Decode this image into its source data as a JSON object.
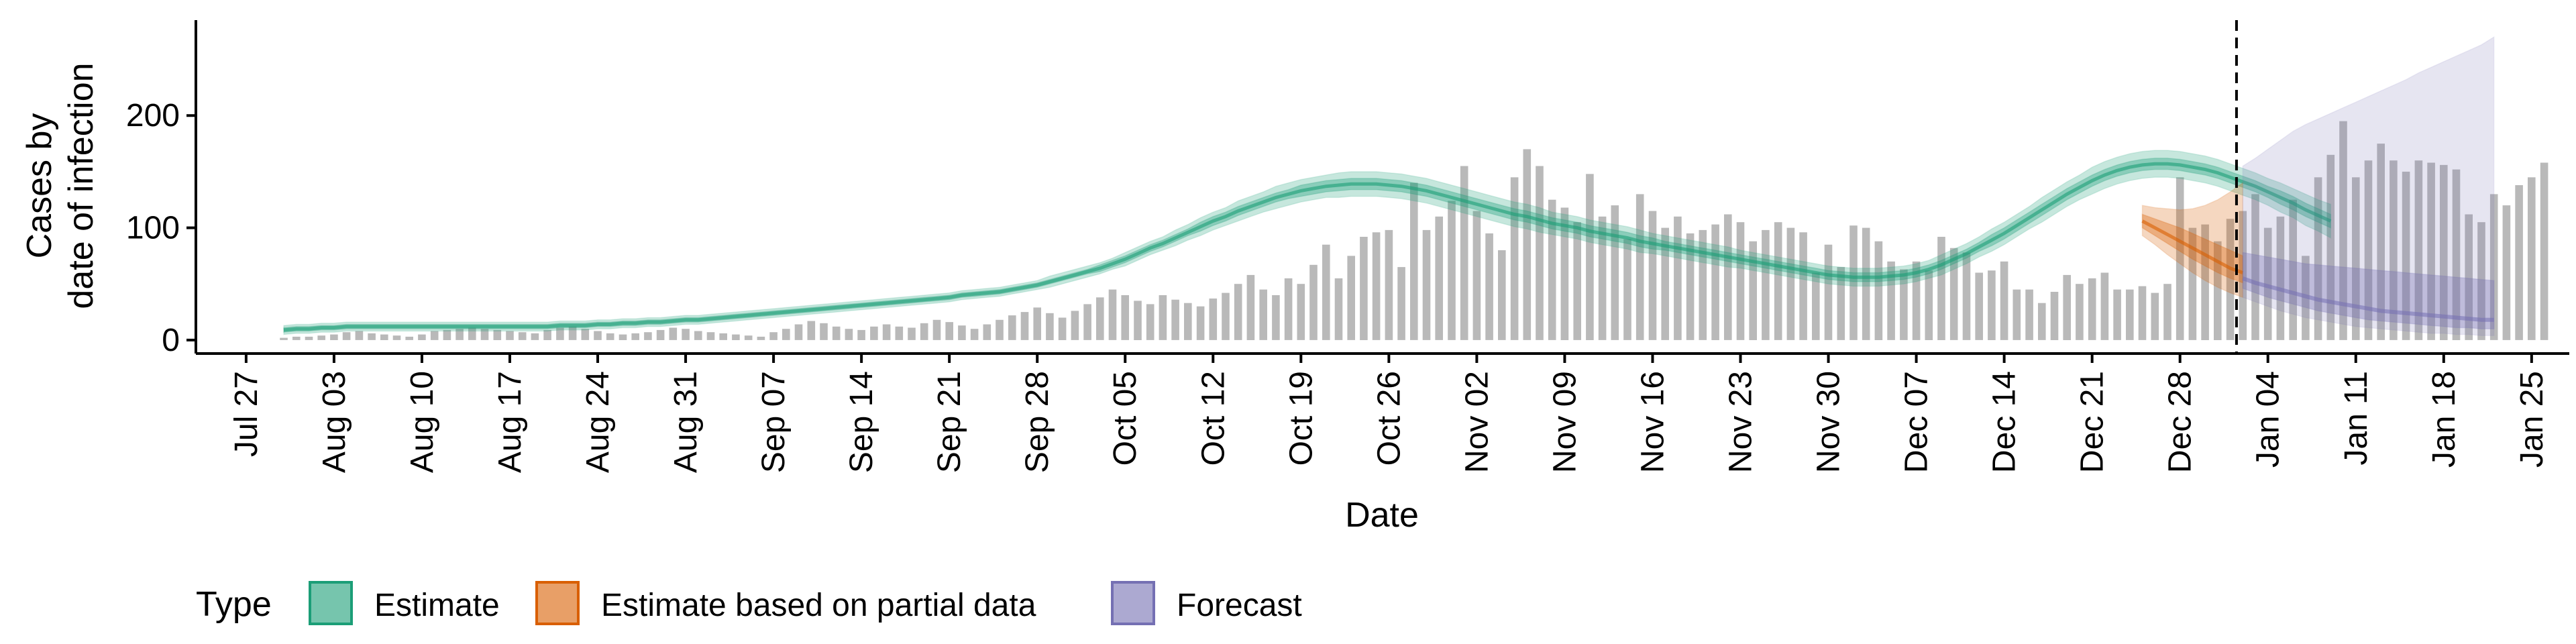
{
  "chart_data": {
    "type": "bar",
    "title": "",
    "xlabel": "Date",
    "ylabel_lines": [
      "Cases by",
      "date of infection"
    ],
    "x_range": [
      "2020-07-23",
      "2021-01-28"
    ],
    "ylim": [
      -12,
      285
    ],
    "y_ticks": [
      0,
      100,
      200
    ],
    "x_ticks": [
      {
        "date": "2020-07-27",
        "label": "Jul 27"
      },
      {
        "date": "2020-08-03",
        "label": "Aug 03"
      },
      {
        "date": "2020-08-10",
        "label": "Aug 10"
      },
      {
        "date": "2020-08-17",
        "label": "Aug 17"
      },
      {
        "date": "2020-08-24",
        "label": "Aug 24"
      },
      {
        "date": "2020-08-31",
        "label": "Aug 31"
      },
      {
        "date": "2020-09-07",
        "label": "Sep 07"
      },
      {
        "date": "2020-09-14",
        "label": "Sep 14"
      },
      {
        "date": "2020-09-21",
        "label": "Sep 21"
      },
      {
        "date": "2020-09-28",
        "label": "Sep 28"
      },
      {
        "date": "2020-10-05",
        "label": "Oct 05"
      },
      {
        "date": "2020-10-12",
        "label": "Oct 12"
      },
      {
        "date": "2020-10-19",
        "label": "Oct 19"
      },
      {
        "date": "2020-10-26",
        "label": "Oct 26"
      },
      {
        "date": "2020-11-02",
        "label": "Nov 02"
      },
      {
        "date": "2020-11-09",
        "label": "Nov 09"
      },
      {
        "date": "2020-11-16",
        "label": "Nov 16"
      },
      {
        "date": "2020-11-23",
        "label": "Nov 23"
      },
      {
        "date": "2020-11-30",
        "label": "Nov 30"
      },
      {
        "date": "2020-12-07",
        "label": "Dec 07"
      },
      {
        "date": "2020-12-14",
        "label": "Dec 14"
      },
      {
        "date": "2020-12-21",
        "label": "Dec 21"
      },
      {
        "date": "2020-12-28",
        "label": "Dec 28"
      },
      {
        "date": "2021-01-04",
        "label": "Jan 04"
      },
      {
        "date": "2021-01-11",
        "label": "Jan 11"
      },
      {
        "date": "2021-01-18",
        "label": "Jan 18"
      },
      {
        "date": "2021-01-25",
        "label": "Jan 25"
      }
    ],
    "forecast_start_date": "2021-01-02",
    "bars": {
      "start_date": "2020-07-30",
      "values": [
        2,
        3,
        3,
        4,
        5,
        7,
        8,
        6,
        5,
        4,
        3,
        5,
        8,
        9,
        10,
        11,
        10,
        9,
        8,
        7,
        6,
        9,
        11,
        12,
        10,
        8,
        6,
        5,
        6,
        7,
        9,
        11,
        10,
        8,
        7,
        6,
        5,
        4,
        3,
        7,
        10,
        14,
        17,
        15,
        12,
        10,
        9,
        12,
        14,
        12,
        11,
        15,
        18,
        16,
        13,
        10,
        14,
        18,
        22,
        25,
        29,
        24,
        20,
        26,
        32,
        38,
        45,
        40,
        35,
        32,
        40,
        36,
        33,
        30,
        37,
        42,
        50,
        58,
        45,
        40,
        55,
        50,
        67,
        85,
        55,
        75,
        92,
        96,
        98,
        65,
        140,
        98,
        110,
        124,
        155,
        115,
        95,
        80,
        145,
        170,
        155,
        125,
        118,
        105,
        148,
        110,
        120,
        90,
        130,
        115,
        100,
        110,
        95,
        98,
        103,
        112,
        105,
        88,
        98,
        105,
        100,
        96,
        60,
        85,
        65,
        102,
        100,
        88,
        70,
        63,
        70,
        62,
        92,
        82,
        78,
        60,
        62,
        70,
        45,
        45,
        33,
        43,
        58,
        50,
        55,
        60,
        45,
        45,
        48,
        42,
        50,
        145,
        100,
        103,
        88,
        108,
        115,
        130,
        100,
        110,
        125,
        75,
        145,
        165,
        195,
        145,
        160,
        175,
        160,
        150,
        160,
        158,
        156,
        152
      ],
      "partial_values": [
        112,
        105,
        130,
        120,
        138,
        145,
        158
      ]
    },
    "estimate": {
      "start_date": "2020-07-30",
      "median": [
        9,
        10,
        10,
        11,
        11,
        12,
        12,
        12,
        12,
        12,
        12,
        12,
        12,
        12,
        12,
        12,
        12,
        12,
        12,
        12,
        12,
        12,
        13,
        13,
        13,
        14,
        14,
        15,
        15,
        16,
        16,
        17,
        18,
        18,
        19,
        20,
        21,
        22,
        23,
        24,
        25,
        26,
        27,
        28,
        29,
        30,
        31,
        32,
        33,
        34,
        35,
        36,
        37,
        38,
        40,
        41,
        42,
        43,
        45,
        47,
        49,
        52,
        55,
        58,
        61,
        64,
        68,
        72,
        77,
        82,
        86,
        91,
        96,
        101,
        106,
        110,
        115,
        119,
        123,
        127,
        130,
        133,
        135,
        137,
        138,
        139,
        139,
        139,
        138,
        137,
        135,
        133,
        130,
        127,
        124,
        121,
        118,
        115,
        112,
        110,
        107,
        104,
        102,
        100,
        97,
        95,
        93,
        91,
        88,
        86,
        84,
        82,
        80,
        78,
        76,
        74,
        72,
        70,
        68,
        66,
        64,
        62,
        60,
        58,
        57,
        56,
        56,
        56,
        57,
        58,
        60,
        63,
        67,
        72,
        77,
        83,
        89,
        95,
        102,
        109,
        116,
        123,
        130,
        136,
        142,
        147,
        151,
        154,
        156,
        157,
        157,
        156,
        154,
        152,
        149,
        145,
        141,
        137,
        132,
        127,
        122,
        116,
        111,
        106
      ],
      "ci50_half": [
        2,
        2,
        2,
        2,
        2,
        2,
        2,
        2,
        2,
        2,
        2,
        2,
        2,
        2,
        2,
        2,
        2,
        2,
        2,
        2,
        2,
        2,
        2,
        2,
        2,
        2,
        2,
        2,
        2,
        2,
        2,
        2,
        2,
        2,
        2,
        2,
        2,
        2,
        2,
        2,
        2,
        2,
        2,
        2,
        2,
        2,
        2,
        2,
        2,
        2,
        2,
        2,
        2,
        2,
        2,
        2,
        2,
        2,
        2,
        2,
        2,
        2,
        2,
        2,
        2,
        3,
        3,
        3,
        3,
        3,
        3,
        3,
        3,
        4,
        4,
        4,
        4,
        4,
        4,
        4,
        4,
        5,
        5,
        5,
        5,
        5,
        5,
        5,
        5,
        5,
        5,
        5,
        5,
        5,
        5,
        5,
        5,
        5,
        5,
        5,
        5,
        5,
        5,
        5,
        5,
        5,
        5,
        5,
        5,
        5,
        4,
        4,
        4,
        4,
        4,
        4,
        4,
        4,
        4,
        4,
        4,
        4,
        4,
        4,
        4,
        4,
        4,
        4,
        4,
        4,
        4,
        4,
        4,
        4,
        4,
        4,
        5,
        5,
        5,
        5,
        5,
        5,
        5,
        5,
        5,
        5,
        5,
        5,
        5,
        5,
        5,
        5,
        5,
        5,
        5,
        5,
        5,
        5,
        5,
        6,
        6,
        6,
        6,
        6
      ],
      "ci90_half": [
        4,
        4,
        4,
        4,
        4,
        4,
        4,
        4,
        4,
        4,
        4,
        4,
        4,
        4,
        4,
        4,
        4,
        4,
        4,
        4,
        4,
        4,
        4,
        4,
        4,
        4,
        4,
        4,
        4,
        4,
        4,
        4,
        4,
        4,
        4,
        4,
        4,
        4,
        4,
        4,
        4,
        4,
        4,
        4,
        4,
        4,
        4,
        4,
        4,
        4,
        4,
        4,
        4,
        4,
        4,
        4,
        4,
        4,
        4,
        4,
        4,
        5,
        5,
        5,
        5,
        5,
        5,
        6,
        6,
        6,
        6,
        7,
        7,
        8,
        8,
        8,
        9,
        9,
        9,
        10,
        10,
        10,
        10,
        10,
        11,
        11,
        11,
        11,
        11,
        11,
        11,
        11,
        11,
        11,
        11,
        11,
        11,
        11,
        11,
        11,
        11,
        10,
        10,
        10,
        10,
        10,
        10,
        10,
        10,
        9,
        9,
        9,
        9,
        9,
        9,
        9,
        8,
        8,
        8,
        8,
        8,
        8,
        8,
        8,
        8,
        8,
        8,
        8,
        8,
        8,
        8,
        8,
        9,
        9,
        9,
        9,
        10,
        10,
        10,
        10,
        11,
        11,
        11,
        11,
        12,
        12,
        12,
        12,
        12,
        12,
        12,
        12,
        12,
        12,
        12,
        12,
        12,
        12,
        12,
        13,
        13,
        14,
        14,
        15
      ]
    },
    "estimate_partial": {
      "start_date": "2020-12-25",
      "median": [
        106,
        100,
        94,
        88,
        82,
        76,
        70,
        64,
        60
      ],
      "lower50": [
        100,
        93,
        86,
        79,
        72,
        66,
        60,
        55,
        51
      ],
      "upper50": [
        112,
        108,
        104,
        100,
        95,
        90,
        85,
        80,
        75
      ],
      "lower90": [
        93,
        85,
        76,
        68,
        60,
        53,
        47,
        42,
        38
      ],
      "upper90": [
        120,
        118,
        117,
        116,
        117,
        120,
        125,
        132,
        140
      ]
    },
    "forecast": {
      "start_date": "2021-01-02",
      "median": [
        55,
        51,
        48,
        45,
        42,
        39,
        36,
        34,
        32,
        30,
        28,
        26,
        25,
        24,
        23,
        22,
        21,
        20,
        19,
        18,
        18
      ],
      "lower50": [
        46,
        42,
        38,
        35,
        32,
        29,
        26,
        24,
        22,
        20,
        18,
        17,
        16,
        15,
        14,
        13,
        12,
        11,
        11,
        10,
        10
      ],
      "upper50": [
        78,
        76,
        74,
        72,
        70,
        68,
        67,
        66,
        65,
        64,
        63,
        62,
        61,
        60,
        59,
        58,
        57,
        56,
        55,
        54,
        53
      ],
      "lower90": [
        38,
        34,
        30,
        26,
        23,
        20,
        18,
        16,
        14,
        12,
        11,
        10,
        9,
        8,
        7,
        6,
        6,
        5,
        5,
        4,
        4
      ],
      "upper90": [
        155,
        162,
        170,
        178,
        186,
        192,
        197,
        202,
        207,
        212,
        217,
        222,
        227,
        232,
        238,
        243,
        248,
        253,
        258,
        263,
        270
      ]
    },
    "legend": {
      "title": "Type",
      "placement": "bottom-left",
      "entries": [
        {
          "label": "Estimate",
          "fill": "#1b9e77"
        },
        {
          "label": "Estimate based on partial data",
          "fill": "#d95f02"
        },
        {
          "label": "Forecast",
          "fill": "#7570b3"
        }
      ]
    },
    "colors": {
      "bars": "#b9b9b9",
      "estimate": "#1b9e77",
      "partial": "#d95f02",
      "forecast": "#7570b3"
    }
  }
}
